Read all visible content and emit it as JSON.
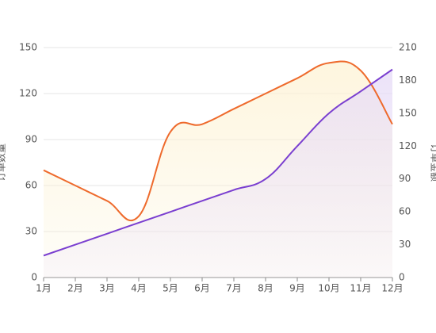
{
  "chart_data": {
    "type": "line",
    "ylabel": "订单数量",
    "y2label": "订单金额",
    "categories": [
      "1月",
      "2月",
      "3月",
      "4月",
      "5月",
      "6月",
      "7月",
      "8月",
      "9月",
      "10月",
      "11月",
      "12月"
    ],
    "series": [
      {
        "color": "#ee6a2c",
        "area_color": "#fdf3d6",
        "values": [
          70,
          60,
          50,
          40,
          95,
          100,
          110,
          120,
          130,
          140,
          135,
          100
        ]
      },
      {
        "color": "#7a3fd0",
        "area_color": "#e7dcf7",
        "axis": "y2",
        "values": [
          20,
          30,
          40,
          50,
          60,
          70,
          80,
          90,
          120,
          150,
          170,
          190
        ]
      }
    ],
    "ylim": [
      0,
      150
    ],
    "yticks": [
      0,
      30,
      60,
      90,
      120,
      150
    ],
    "y2lim": [
      0,
      210
    ],
    "y2ticks": [
      0,
      30,
      60,
      90,
      120,
      150,
      180,
      210
    ],
    "grid": true,
    "smooth": true,
    "area": true
  }
}
